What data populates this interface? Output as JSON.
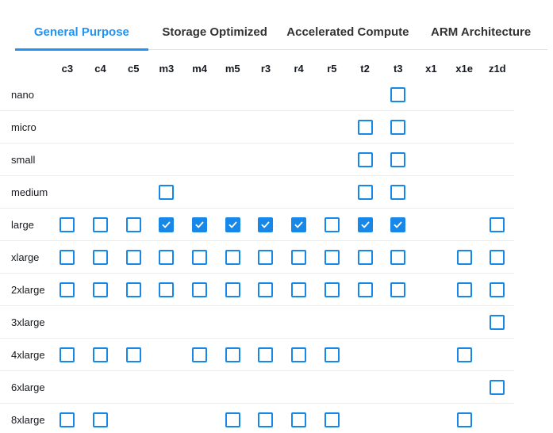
{
  "tabs": {
    "items": [
      {
        "label": "General Purpose",
        "active": true
      },
      {
        "label": "Storage Optimized",
        "active": false
      },
      {
        "label": "Accelerated Compute",
        "active": false
      },
      {
        "label": "ARM Architecture",
        "active": false
      }
    ]
  },
  "grid": {
    "columns": [
      "c3",
      "c4",
      "c5",
      "m3",
      "m4",
      "m5",
      "r3",
      "r4",
      "r5",
      "t2",
      "t3",
      "x1",
      "x1e",
      "z1d"
    ],
    "cell_legend": {
      "0": "no-checkbox",
      "1": "unchecked",
      "2": "checked"
    },
    "rows": [
      {
        "label": "nano",
        "cells": [
          0,
          0,
          0,
          0,
          0,
          0,
          0,
          0,
          0,
          0,
          1,
          0,
          0,
          0
        ]
      },
      {
        "label": "micro",
        "cells": [
          0,
          0,
          0,
          0,
          0,
          0,
          0,
          0,
          0,
          1,
          1,
          0,
          0,
          0
        ]
      },
      {
        "label": "small",
        "cells": [
          0,
          0,
          0,
          0,
          0,
          0,
          0,
          0,
          0,
          1,
          1,
          0,
          0,
          0
        ]
      },
      {
        "label": "medium",
        "cells": [
          0,
          0,
          0,
          1,
          0,
          0,
          0,
          0,
          0,
          1,
          1,
          0,
          0,
          0
        ]
      },
      {
        "label": "large",
        "cells": [
          1,
          1,
          1,
          2,
          2,
          2,
          2,
          2,
          1,
          2,
          2,
          0,
          0,
          1
        ]
      },
      {
        "label": "xlarge",
        "cells": [
          1,
          1,
          1,
          1,
          1,
          1,
          1,
          1,
          1,
          1,
          1,
          0,
          1,
          1
        ]
      },
      {
        "label": "2xlarge",
        "cells": [
          1,
          1,
          1,
          1,
          1,
          1,
          1,
          1,
          1,
          1,
          1,
          0,
          1,
          1
        ]
      },
      {
        "label": "3xlarge",
        "cells": [
          0,
          0,
          0,
          0,
          0,
          0,
          0,
          0,
          0,
          0,
          0,
          0,
          0,
          1
        ]
      },
      {
        "label": "4xlarge",
        "cells": [
          1,
          1,
          1,
          0,
          1,
          1,
          1,
          1,
          1,
          0,
          0,
          0,
          1,
          0
        ]
      },
      {
        "label": "6xlarge",
        "cells": [
          0,
          0,
          0,
          0,
          0,
          0,
          0,
          0,
          0,
          0,
          0,
          0,
          0,
          1
        ]
      },
      {
        "label": "8xlarge",
        "cells": [
          1,
          1,
          0,
          0,
          0,
          1,
          1,
          1,
          1,
          0,
          0,
          0,
          1,
          0
        ]
      }
    ]
  },
  "colors": {
    "accent_blue": "#1788e8",
    "tab_active_blue": "#2193f3",
    "tab_inactive_text": "#333333",
    "label_text": "#16191f",
    "row_separator": "#ececec",
    "tabbar_border": "#e2e2e2",
    "background": "#ffffff",
    "checkmark": "#ffffff"
  }
}
